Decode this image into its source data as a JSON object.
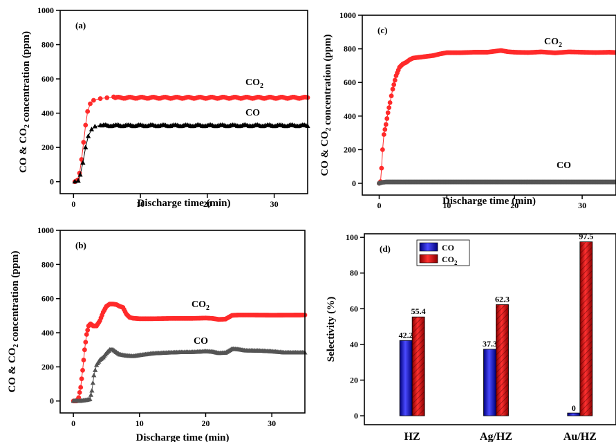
{
  "chart_data": [
    {
      "panel_label": "(a)",
      "type": "scatter",
      "xlabel": "Discharge time (min)",
      "ylabel": "CO & CO₂ concentration (ppm)",
      "xlim": [
        -2,
        35
      ],
      "ylim": [
        -70,
        1000
      ],
      "xticks": [
        0,
        10,
        20,
        30
      ],
      "yticks": [
        0,
        200,
        400,
        600,
        800,
        1000
      ],
      "series": [
        {
          "name": "CO₂",
          "color": "#ff2a2a",
          "marker": "circle",
          "ramp": [
            [
              0.2,
              0
            ],
            [
              0.6,
              10
            ],
            [
              0.9,
              50
            ],
            [
              1.2,
              130
            ],
            [
              1.5,
              230
            ],
            [
              1.8,
              330
            ],
            [
              2.1,
              410
            ],
            [
              2.5,
              455
            ],
            [
              3.0,
              475
            ],
            [
              4,
              485
            ],
            [
              5,
              490
            ],
            [
              6,
              495
            ]
          ],
          "plateau": 490
        },
        {
          "name": "CO",
          "color": "#000000",
          "marker": "triangle",
          "ramp": [
            [
              0.2,
              0
            ],
            [
              0.7,
              5
            ],
            [
              1.0,
              40
            ],
            [
              1.4,
              110
            ],
            [
              1.8,
              200
            ],
            [
              2.2,
              265
            ],
            [
              2.7,
              305
            ],
            [
              3.2,
              322
            ],
            [
              4,
              328
            ]
          ],
          "plateau": 327
        }
      ]
    },
    {
      "panel_label": "(b)",
      "type": "scatter",
      "xlabel": "Discharge time (min)",
      "ylabel": "CO & CO₂ concentration (ppm)",
      "xlim": [
        -2,
        35
      ],
      "ylim": [
        -70,
        1000
      ],
      "xticks": [
        0,
        10,
        20,
        30
      ],
      "yticks": [
        0,
        200,
        400,
        600,
        800,
        1000
      ],
      "series": [
        {
          "name": "CO₂",
          "color": "#ff2a2a",
          "marker": "circle",
          "points": [
            [
              0,
              0
            ],
            [
              0.5,
              0
            ],
            [
              0.8,
              20
            ],
            [
              1.1,
              80
            ],
            [
              1.4,
              180
            ],
            [
              1.7,
              300
            ],
            [
              2.0,
              390
            ],
            [
              2.3,
              440
            ],
            [
              2.6,
              452
            ],
            [
              3.0,
              440
            ],
            [
              3.5,
              440
            ],
            [
              4.0,
              470
            ],
            [
              4.5,
              520
            ],
            [
              5.0,
              555
            ],
            [
              5.5,
              568
            ],
            [
              6.0,
              568
            ],
            [
              6.5,
              565
            ],
            [
              7.0,
              555
            ],
            [
              7.5,
              548
            ],
            [
              8.0,
              510
            ],
            [
              8.5,
              490
            ],
            [
              9.0,
              485
            ],
            [
              10,
              482
            ],
            [
              12,
              482
            ],
            [
              15,
              484
            ],
            [
              18,
              484
            ],
            [
              20,
              486
            ],
            [
              21,
              484
            ],
            [
              22,
              478
            ],
            [
              23,
              480
            ],
            [
              24,
              502
            ],
            [
              25,
              504
            ],
            [
              27,
              504
            ],
            [
              30,
              503
            ],
            [
              35,
              504
            ]
          ]
        },
        {
          "name": "CO",
          "color": "#555555",
          "marker": "triangle",
          "points": [
            [
              0,
              0
            ],
            [
              1,
              0
            ],
            [
              2,
              5
            ],
            [
              2.5,
              10
            ],
            [
              2.8,
              60
            ],
            [
              3.1,
              150
            ],
            [
              3.5,
              210
            ],
            [
              4.0,
              240
            ],
            [
              4.5,
              255
            ],
            [
              5.0,
              280
            ],
            [
              5.5,
              300
            ],
            [
              6.0,
              300
            ],
            [
              6.5,
              285
            ],
            [
              7.0,
              272
            ],
            [
              8.0,
              265
            ],
            [
              9.0,
              262
            ],
            [
              10,
              268
            ],
            [
              12,
              278
            ],
            [
              14,
              282
            ],
            [
              16,
              285
            ],
            [
              18,
              286
            ],
            [
              20,
              290
            ],
            [
              21,
              288
            ],
            [
              22,
              280
            ],
            [
              23,
              282
            ],
            [
              24,
              305
            ],
            [
              25,
              302
            ],
            [
              26,
              295
            ],
            [
              28,
              294
            ],
            [
              30,
              290
            ],
            [
              32,
              283
            ],
            [
              35,
              283
            ]
          ]
        }
      ]
    },
    {
      "panel_label": "(c)",
      "type": "scatter",
      "xlabel": "Discharge time (min)",
      "ylabel": "CO & CO₂ concentration (ppm)",
      "xlim": [
        -2.5,
        35
      ],
      "ylim": [
        -70,
        1000
      ],
      "xticks": [
        0,
        10,
        20,
        30
      ],
      "yticks": [
        0,
        200,
        400,
        600,
        800,
        1000
      ],
      "series": [
        {
          "name": "CO₂",
          "color": "#ff2a2a",
          "marker": "circle",
          "points": [
            [
              0,
              0
            ],
            [
              0.2,
              10
            ],
            [
              0.35,
              90
            ],
            [
              0.5,
              200
            ],
            [
              0.7,
              290
            ],
            [
              1.0,
              350
            ],
            [
              1.3,
              420
            ],
            [
              1.6,
              480
            ],
            [
              2.0,
              560
            ],
            [
              2.5,
              640
            ],
            [
              3.0,
              690
            ],
            [
              3.5,
              710
            ],
            [
              4.0,
              720
            ],
            [
              4.5,
              735
            ],
            [
              5.0,
              745
            ],
            [
              6,
              750
            ],
            [
              7,
              755
            ],
            [
              8,
              760
            ],
            [
              9,
              770
            ],
            [
              10,
              777
            ],
            [
              12,
              777
            ],
            [
              14,
              780
            ],
            [
              16,
              780
            ],
            [
              18,
              790
            ],
            [
              19,
              783
            ],
            [
              20,
              780
            ],
            [
              22,
              778
            ],
            [
              24,
              782
            ],
            [
              26,
              776
            ],
            [
              28,
              782
            ],
            [
              30,
              780
            ],
            [
              32,
              778
            ],
            [
              34,
              780
            ],
            [
              35,
              778
            ]
          ]
        },
        {
          "name": "CO",
          "color": "#555555",
          "marker": "circle",
          "points": [
            [
              0,
              0
            ],
            [
              0.4,
              5
            ],
            [
              1,
              8
            ],
            [
              5,
              8
            ],
            [
              10,
              8
            ],
            [
              15,
              8
            ],
            [
              20,
              8
            ],
            [
              25,
              8
            ],
            [
              30,
              8
            ],
            [
              35,
              8
            ]
          ]
        }
      ]
    },
    {
      "panel_label": "(d)",
      "type": "bar",
      "xlabel": "",
      "ylabel": "Selectivity (%)",
      "ylim": [
        -5,
        102
      ],
      "yticks": [
        0,
        20,
        40,
        60,
        80,
        100
      ],
      "categories": [
        "HZ",
        "Ag/HZ",
        "Au/HZ"
      ],
      "legend_placement": "top-left",
      "series": [
        {
          "name": "CO",
          "color": "#1a1aff",
          "values": [
            42.2,
            37.3,
            0
          ],
          "labels": [
            "42.2",
            "37.3",
            "0"
          ]
        },
        {
          "name": "CO₂",
          "color": "#ff1a1a",
          "values": [
            55.4,
            62.3,
            97.5
          ],
          "labels": [
            "55.4",
            "62.3",
            "97.5"
          ]
        }
      ]
    }
  ]
}
